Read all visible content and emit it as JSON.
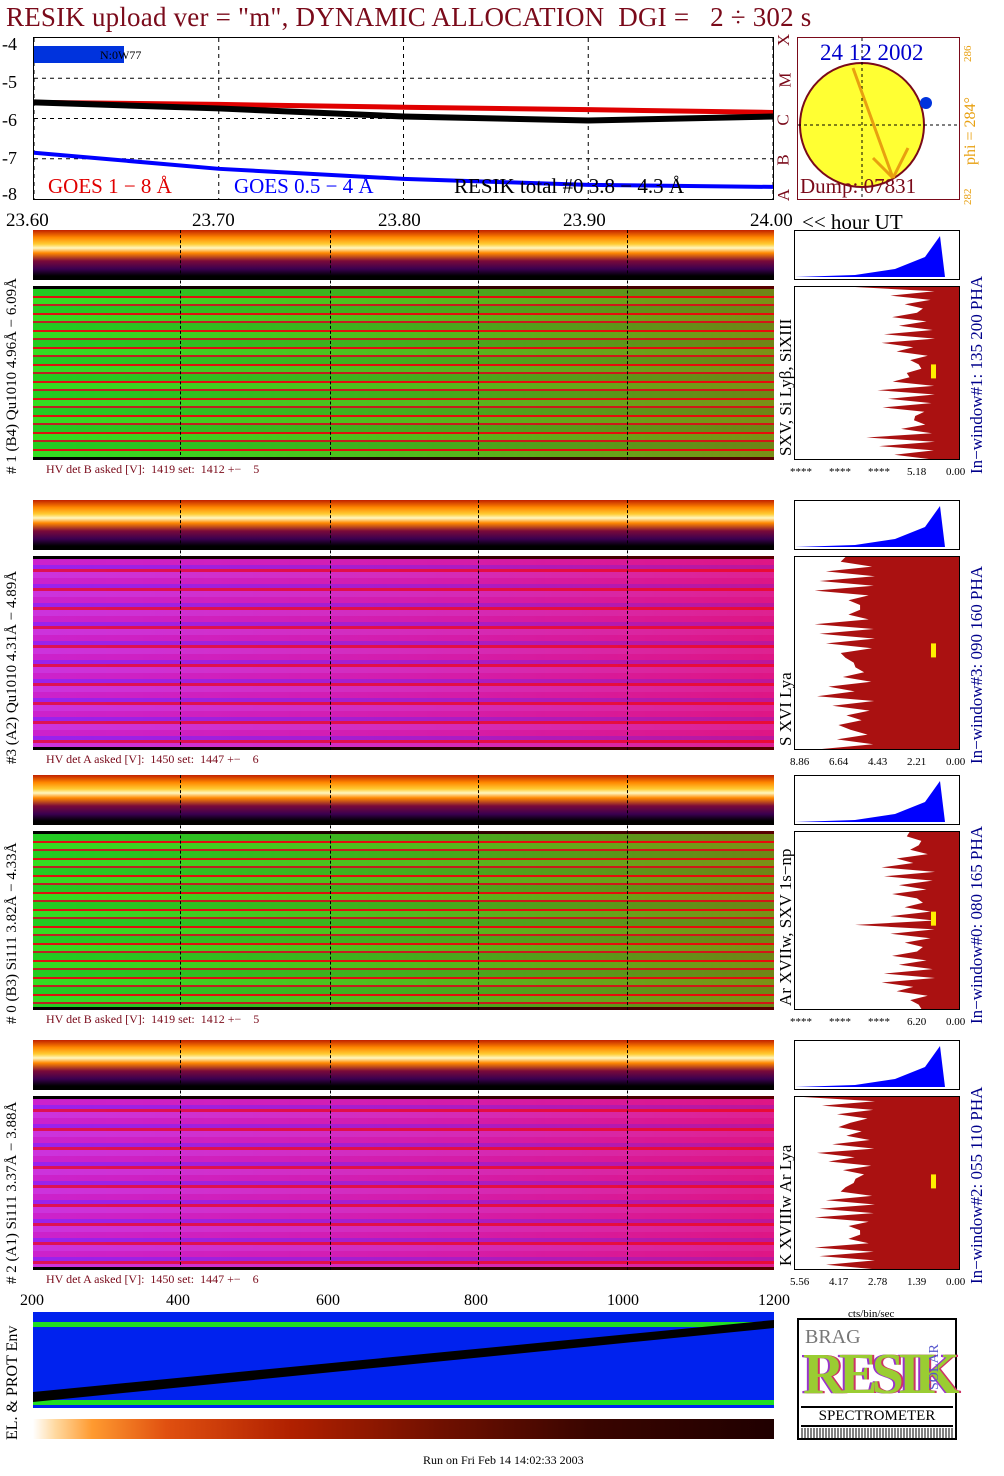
{
  "title": "RESIK upload ver = \"m\", DYNAMIC ALLOCATION  DGI =   2 ÷ 302 s",
  "colors": {
    "title": "#7a0a1a",
    "goes_long": "#e00000",
    "goes_short": "#0000ff",
    "resik_total": "#000000",
    "hist_fill": "#aa1111",
    "hist_top": "#0000ff",
    "blue_label": "#00008b",
    "sun": "#ffff33",
    "orange": "#e8a010"
  },
  "goes_panel": {
    "noaa": "N:0W77",
    "y_ticks": [
      "-4",
      "-5",
      "-6",
      "-7",
      "-8"
    ],
    "legend_goes18": "GOES 1 − 8 Å",
    "legend_goes054": "GOES 0.5 − 4 Å",
    "legend_resik": "RESIK total #0  3.8 − 4.3 Å"
  },
  "sun_panel": {
    "date": "24 12 2002",
    "dump": "Dump: 07831",
    "letters": [
      "X",
      "M",
      "C",
      "B",
      "A"
    ],
    "phi": "phi = 284°",
    "phi_top": "286",
    "phi_bot": "282"
  },
  "time_axis": {
    "ticks": [
      "23.60",
      "23.70",
      "23.80",
      "23.90",
      "24.00"
    ],
    "label": "<< hour UT"
  },
  "spectra": [
    {
      "left_label": "# 1 (B4) Qu1010 4.96Å − 6.09Å",
      "lines": "SXV, Si Lyβ, SiXIII",
      "right_label": "In−window#1:  135 200 PHA",
      "hv": "HV det B asked [V]:  1419 set:  1412 +−    5",
      "hist_ticks": [
        "****",
        "****",
        "****",
        "5.18",
        "0.00"
      ],
      "palette": "green"
    },
    {
      "left_label": "#3 (A2) Qu1010  4.31Å − 4.89Å",
      "lines": "S XVI Lya",
      "right_label": "In−window#3:  090 160 PHA",
      "hv": "HV det A asked [V]:  1450 set:  1447 +−    6",
      "hist_ticks": [
        "8.86",
        "6.64",
        "4.43",
        "2.21",
        "0.00"
      ],
      "palette": "purple"
    },
    {
      "left_label": "# 0 (B3) Si111  3.82Å − 4.33Å",
      "lines": "Ar XVIIw,  SXV 1s−np",
      "right_label": "In−window#0:  080 165 PHA",
      "hv": "HV det B asked [V]:  1419 set:  1412 +−    5",
      "hist_ticks": [
        "****",
        "****",
        "****",
        "6.20",
        "0.00"
      ],
      "palette": "green"
    },
    {
      "left_label": "# 2 (A1) Si111  3.37Å − 3.88Å",
      "lines": "K XVIIIw  Ar Lya",
      "right_label": "In−window#2:  055 110 PHA",
      "hv": "HV det A asked [V]:  1450 set:  1447 +−    6",
      "hist_ticks": [
        "5.56",
        "4.17",
        "2.78",
        "1.39",
        "0.00"
      ],
      "palette": "purple"
    }
  ],
  "bottom_axis": {
    "ticks": [
      "200",
      "400",
      "600",
      "800",
      "1000",
      "1200"
    ]
  },
  "env_label": "EL. & PROT Env",
  "hist_xlabel": "cts/bin/sec",
  "logo": {
    "main": "RESIK",
    "small_top": "BRAG",
    "side": "SOLAR",
    "bottom": "SPECTROMETER"
  },
  "footer": "Run on Fri Feb 14 14:02:33 2003",
  "chart_data": [
    {
      "type": "line",
      "title": "",
      "xlabel": "hour UT",
      "ylabel": "",
      "x": [
        23.6,
        23.7,
        23.8,
        23.9,
        24.0
      ],
      "xlim": [
        23.6,
        24.0
      ],
      "ylim": [
        -8,
        -4
      ],
      "series": [
        {
          "name": "GOES 1 − 8 Å",
          "values": [
            -5.6,
            -5.65,
            -5.72,
            -5.78,
            -5.85
          ]
        },
        {
          "name": "GOES 0.5 − 4 Å",
          "values": [
            -6.85,
            -7.25,
            -7.5,
            -7.65,
            -7.7
          ]
        },
        {
          "name": "RESIK total #0  3.8 − 4.3 Å",
          "values": [
            -5.6,
            -5.75,
            -5.95,
            -6.05,
            -5.95
          ]
        }
      ]
    },
    {
      "type": "heatmap",
      "xlabel": "",
      "ylabel": "",
      "x_ticks": [
        200,
        400,
        600,
        800,
        1000,
        1200
      ],
      "xlim": [
        200,
        1200
      ]
    }
  ]
}
